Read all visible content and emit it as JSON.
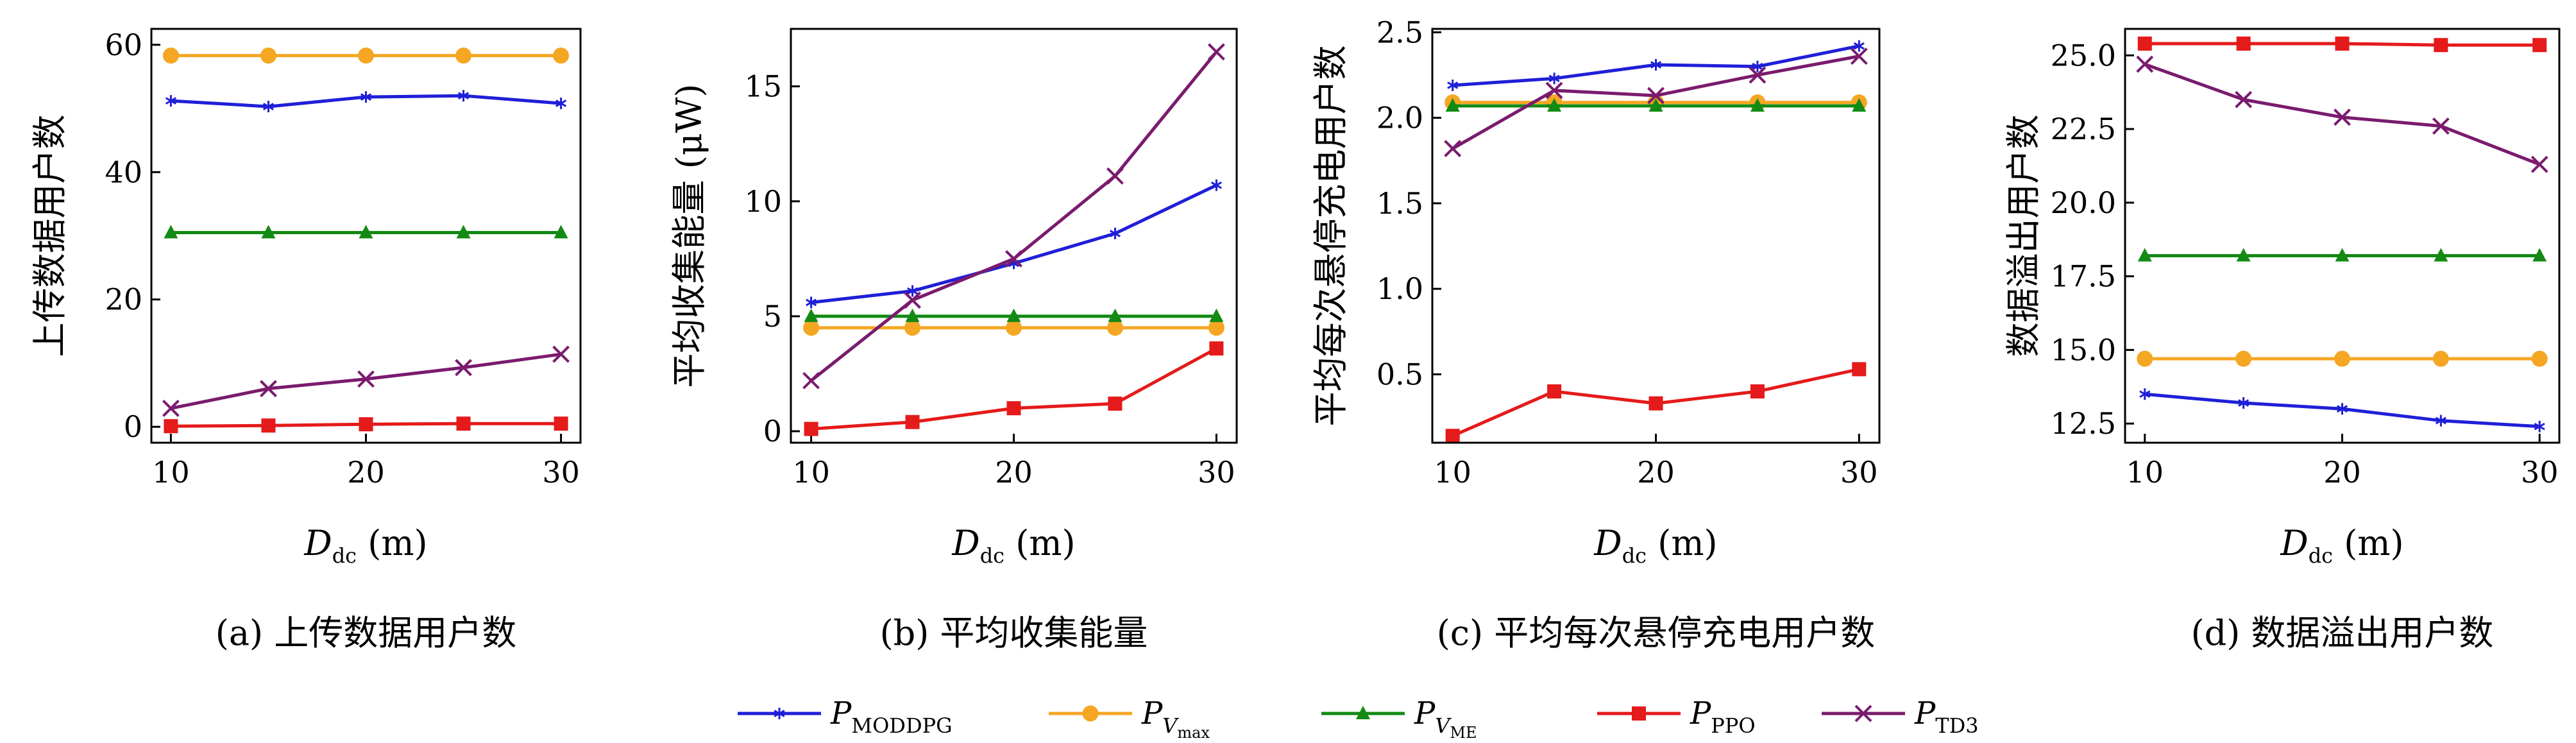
{
  "colors": {
    "P_MODDPG": "#1f1fd8",
    "P_Vmax": "#f5a623",
    "P_VME": "#138a13",
    "P_PPO": "#e51a1a",
    "P_TD3": "#7a1b6e"
  },
  "legend": [
    {
      "key": "P_MODDPG",
      "main": "P",
      "sub": "MODDPG",
      "subsub": "",
      "marker": "star"
    },
    {
      "key": "P_Vmax",
      "main": "P",
      "sub": "V",
      "subsub": "max",
      "marker": "circle"
    },
    {
      "key": "P_VME",
      "main": "P",
      "sub": "V",
      "subsub": "ME",
      "marker": "triangle"
    },
    {
      "key": "P_PPO",
      "main": "P",
      "sub": "PPO",
      "subsub": "",
      "marker": "square"
    },
    {
      "key": "P_TD3",
      "main": "P",
      "sub": "TD3",
      "subsub": "",
      "marker": "x"
    }
  ],
  "chart_data": [
    {
      "type": "line",
      "caption": "(a) 上传数据用户数",
      "ylabel": "上传数据用户数",
      "xlabel_main": "D",
      "xlabel_sub": "dc",
      "xlabel_unit": " (m)",
      "x": [
        10,
        15,
        20,
        25,
        30
      ],
      "xlim": [
        9,
        31
      ],
      "ylim": [
        -2.5,
        62.5
      ],
      "yticks": [
        "0",
        "20",
        "40",
        "60"
      ],
      "ytick_values": [
        0,
        20,
        40,
        60
      ],
      "xticks": [
        "10",
        "20",
        "30"
      ],
      "xtick_values": [
        10,
        20,
        30
      ],
      "series": [
        {
          "key": "P_MODDPG",
          "values": [
            51.2,
            50.3,
            51.8,
            52.0,
            50.8
          ]
        },
        {
          "key": "P_Vmax",
          "values": [
            58.3,
            58.3,
            58.3,
            58.3,
            58.3
          ]
        },
        {
          "key": "P_VME",
          "values": [
            30.5,
            30.5,
            30.5,
            30.5,
            30.5
          ]
        },
        {
          "key": "P_PPO",
          "values": [
            0.1,
            0.2,
            0.4,
            0.5,
            0.5
          ]
        },
        {
          "key": "P_TD3",
          "values": [
            2.9,
            6.0,
            7.5,
            9.3,
            11.4
          ]
        }
      ]
    },
    {
      "type": "line",
      "caption": "(b) 平均收集能量",
      "ylabel": "平均收集能量 (μW)",
      "xlabel_main": "D",
      "xlabel_sub": "dc",
      "xlabel_unit": " (m)",
      "x": [
        10,
        15,
        20,
        25,
        30
      ],
      "xlim": [
        9,
        31
      ],
      "ylim": [
        -0.5,
        17.5
      ],
      "yticks": [
        "0",
        "5",
        "10",
        "15"
      ],
      "ytick_values": [
        0,
        5,
        10,
        15
      ],
      "xticks": [
        "10",
        "20",
        "30"
      ],
      "xtick_values": [
        10,
        20,
        30
      ],
      "series": [
        {
          "key": "P_MODDPG",
          "values": [
            5.6,
            6.1,
            7.3,
            8.6,
            10.7
          ]
        },
        {
          "key": "P_Vmax",
          "values": [
            4.5,
            4.5,
            4.5,
            4.5,
            4.5
          ]
        },
        {
          "key": "P_VME",
          "values": [
            5.0,
            5.0,
            5.0,
            5.0,
            5.0
          ]
        },
        {
          "key": "P_PPO",
          "values": [
            0.1,
            0.4,
            1.0,
            1.2,
            3.6
          ]
        },
        {
          "key": "P_TD3",
          "values": [
            2.2,
            5.7,
            7.5,
            11.1,
            16.5
          ]
        }
      ]
    },
    {
      "type": "line",
      "caption": "(c) 平均每次悬停充电用户数",
      "ylabel": "平均每次悬停充电用户数",
      "xlabel_main": "D",
      "xlabel_sub": "dc",
      "xlabel_unit": " (m)",
      "x": [
        10,
        15,
        20,
        25,
        30
      ],
      "xlim": [
        9,
        31
      ],
      "ylim": [
        0.1,
        2.52
      ],
      "yticks": [
        "0.5",
        "1.0",
        "1.5",
        "2.0",
        "2.5"
      ],
      "ytick_values": [
        0.5,
        1.0,
        1.5,
        2.0,
        2.5
      ],
      "xticks": [
        "10",
        "20",
        "30"
      ],
      "xtick_values": [
        10,
        20,
        30
      ],
      "series": [
        {
          "key": "P_MODDPG",
          "values": [
            2.19,
            2.23,
            2.31,
            2.3,
            2.42
          ]
        },
        {
          "key": "P_Vmax",
          "values": [
            2.09,
            2.09,
            2.09,
            2.09,
            2.09
          ]
        },
        {
          "key": "P_VME",
          "values": [
            2.07,
            2.07,
            2.07,
            2.07,
            2.07
          ]
        },
        {
          "key": "P_PPO",
          "values": [
            0.14,
            0.4,
            0.33,
            0.4,
            0.53
          ]
        },
        {
          "key": "P_TD3",
          "values": [
            1.82,
            2.16,
            2.13,
            2.25,
            2.36
          ]
        }
      ]
    },
    {
      "type": "line",
      "caption": "(d) 数据溢出用户数",
      "ylabel": "数据溢出用户数",
      "xlabel_main": "D",
      "xlabel_sub": "dc",
      "xlabel_unit": " (m)",
      "x": [
        10,
        15,
        20,
        25,
        30
      ],
      "xlim": [
        9,
        31
      ],
      "ylim": [
        11.85,
        25.9
      ],
      "yticks": [
        "12.5",
        "15.0",
        "17.5",
        "20.0",
        "22.5",
        "25.0"
      ],
      "ytick_values": [
        12.5,
        15.0,
        17.5,
        20.0,
        22.5,
        25.0
      ],
      "xticks": [
        "10",
        "20",
        "30"
      ],
      "xtick_values": [
        10,
        20,
        30
      ],
      "series": [
        {
          "key": "P_MODDPG",
          "values": [
            13.5,
            13.2,
            13.0,
            12.6,
            12.4
          ]
        },
        {
          "key": "P_Vmax",
          "values": [
            14.7,
            14.7,
            14.7,
            14.7,
            14.7
          ]
        },
        {
          "key": "P_VME",
          "values": [
            18.2,
            18.2,
            18.2,
            18.2,
            18.2
          ]
        },
        {
          "key": "P_PPO",
          "values": [
            25.4,
            25.4,
            25.4,
            25.35,
            25.35
          ]
        },
        {
          "key": "P_TD3",
          "values": [
            24.7,
            23.5,
            22.9,
            22.6,
            21.3
          ]
        }
      ]
    }
  ]
}
